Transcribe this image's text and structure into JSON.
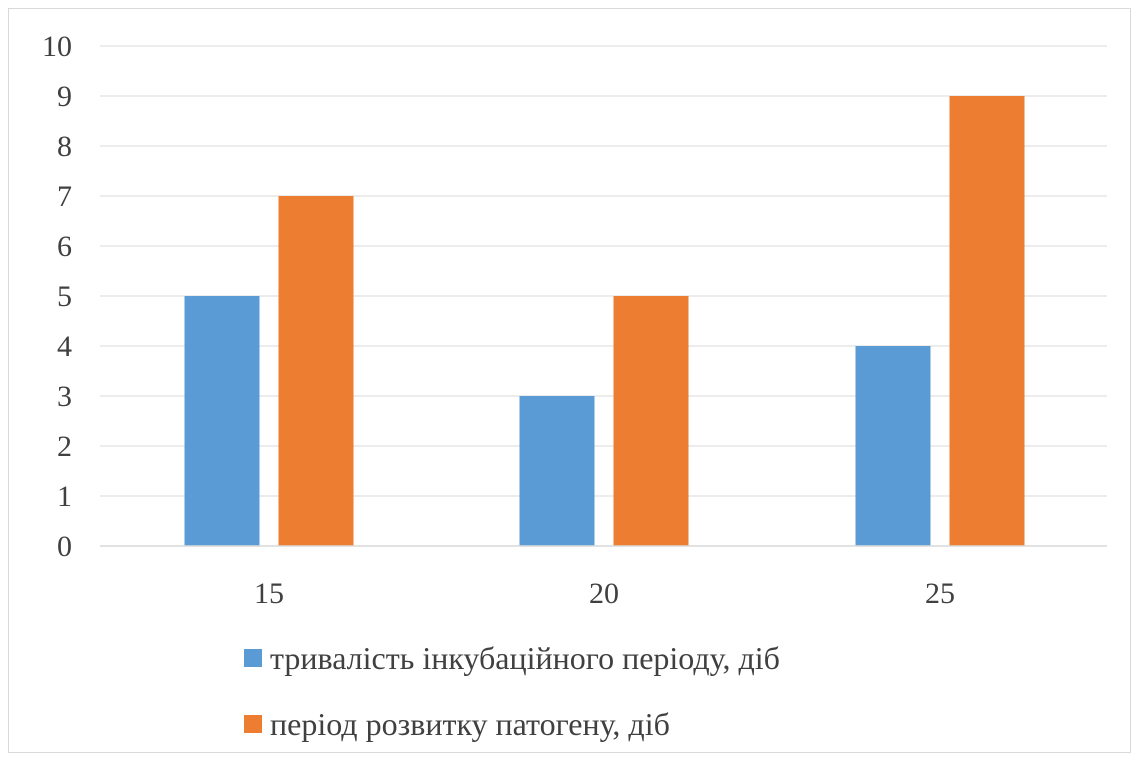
{
  "colors": {
    "series_1": "#5b9bd5",
    "series_2": "#ed7d31",
    "grid": "#d9d9d9",
    "text": "#404040"
  },
  "chart_data": {
    "type": "bar",
    "title": "",
    "xlabel": "",
    "ylabel": "",
    "categories": [
      "15",
      "20",
      "25"
    ],
    "ylim": [
      0,
      10
    ],
    "yticks": [
      "0",
      "1",
      "2",
      "3",
      "4",
      "5",
      "6",
      "7",
      "8",
      "9",
      "10"
    ],
    "grid": true,
    "legend_position": "bottom",
    "series": [
      {
        "name": "тривалість інкубаційного періоду, діб",
        "color": "#5b9bd5",
        "values": [
          5,
          3,
          4
        ]
      },
      {
        "name": "період розвитку патогену, діб",
        "color": "#ed7d31",
        "values": [
          7,
          5,
          9
        ]
      }
    ]
  }
}
